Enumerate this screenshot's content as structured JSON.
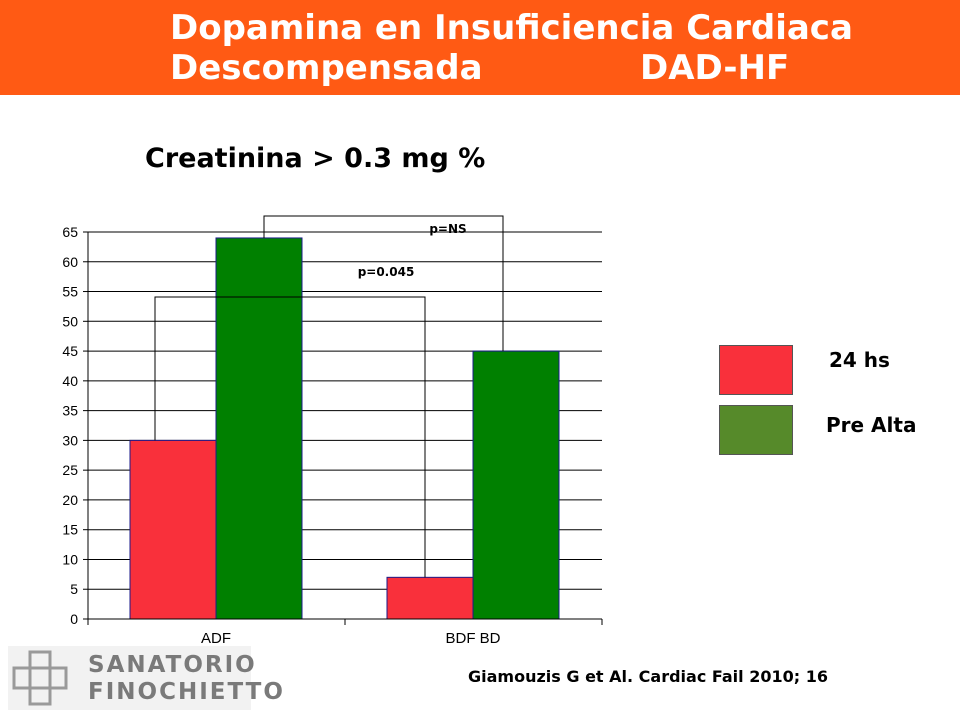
{
  "header": {
    "title_line1": "Dopamina en Insuficiencia Cardiaca",
    "title_line2a": "Descompensada",
    "title_line2b": "DAD-HF",
    "subtitle": "Creatinina > 0.3 mg %"
  },
  "colors": {
    "header_bg": "#ff5a14",
    "series_24hs": "#f9303b",
    "series_pre_alta": "#008000",
    "legend_pre_alta": "#568a2a"
  },
  "chart_data": {
    "type": "bar",
    "categories": [
      "ADF",
      "BDF BD"
    ],
    "series": [
      {
        "name": "24 hs",
        "values": [
          30,
          7
        ]
      },
      {
        "name": "Pre Alta",
        "values": [
          64,
          45
        ]
      }
    ],
    "ylim": [
      0,
      65
    ],
    "y_ticks": [
      0,
      5,
      10,
      15,
      20,
      25,
      30,
      35,
      40,
      45,
      50,
      55,
      60,
      65
    ],
    "grid": true,
    "legend_position": "right",
    "annotations": [
      "p=NS",
      "p=0.045"
    ]
  },
  "legend": {
    "item1": "24 hs",
    "item2": "Pre Alta"
  },
  "citation": "Giamouzis  G et Al.  Cardiac Fail 2010; 16",
  "logo": {
    "line1": "SANATORIO",
    "line2": "FINOCHIETTO"
  }
}
